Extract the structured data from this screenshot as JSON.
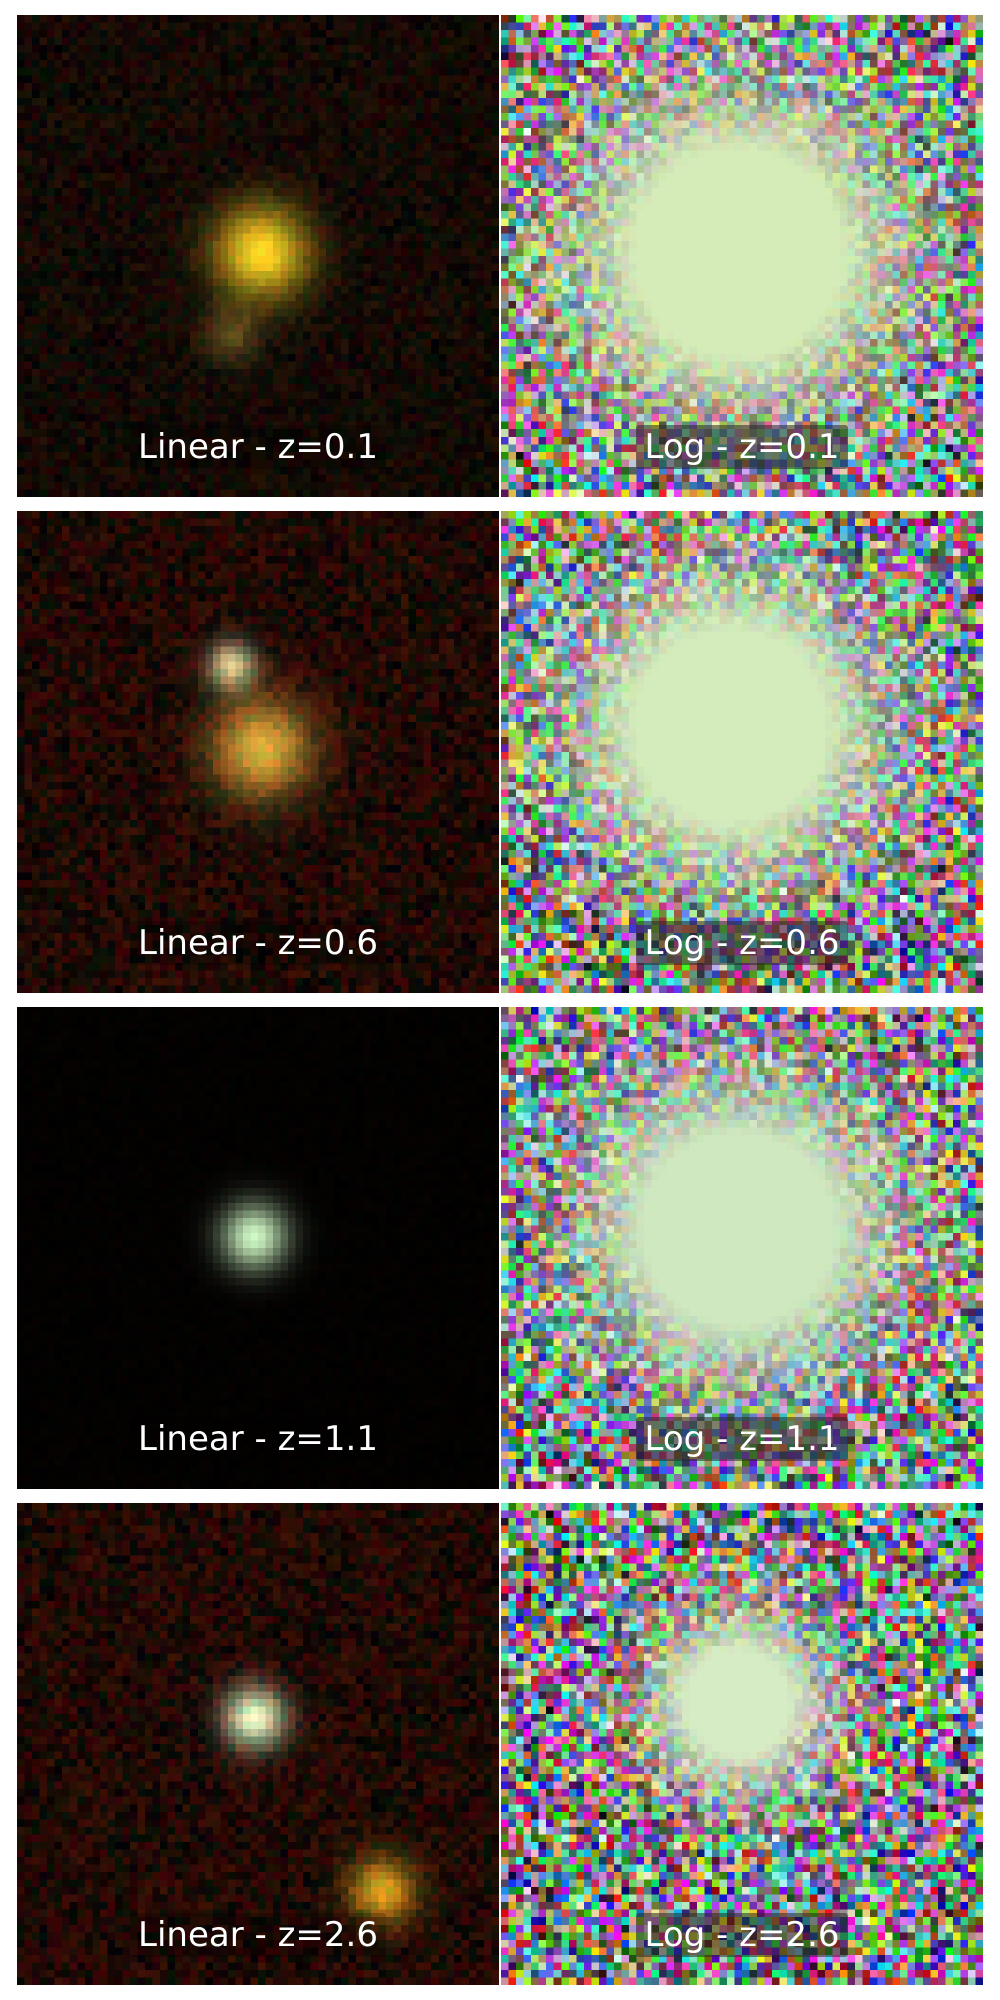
{
  "panels": [
    {
      "row": 0,
      "stretch": "linear",
      "label": "Linear - z=0.1",
      "sources": [
        {
          "kind": "galaxy",
          "color": "#f0d020"
        },
        {
          "kind": "faint",
          "color": "#c0b040"
        }
      ]
    },
    {
      "row": 0,
      "stretch": "log",
      "label": "Log - z=0.1",
      "sources": [
        {
          "kind": "halo",
          "color": "#d6ecb8"
        }
      ]
    },
    {
      "row": 1,
      "stretch": "linear",
      "label": "Linear - z=0.6",
      "sources": [
        {
          "kind": "galaxy",
          "color": "#e6c040"
        },
        {
          "kind": "compact",
          "color": "#d8f0b0"
        }
      ]
    },
    {
      "row": 1,
      "stretch": "log",
      "label": "Log - z=0.6",
      "sources": [
        {
          "kind": "halo",
          "color": "#d4ecbc"
        }
      ]
    },
    {
      "row": 2,
      "stretch": "linear",
      "label": "Linear - z=1.1",
      "sources": [
        {
          "kind": "point",
          "color": "#ccf6c4"
        }
      ]
    },
    {
      "row": 2,
      "stretch": "log",
      "label": "Log - z=1.1",
      "sources": [
        {
          "kind": "halo",
          "color": "#cfe8c0"
        }
      ]
    },
    {
      "row": 3,
      "stretch": "linear",
      "label": "Linear - z=2.6",
      "sources": [
        {
          "kind": "point",
          "color": "#ccf6c4"
        },
        {
          "kind": "galaxy",
          "color": "#f0c020"
        }
      ]
    },
    {
      "row": 3,
      "stretch": "log",
      "label": "Log - z=2.6",
      "sources": [
        {
          "kind": "halo",
          "color": "#d6ecc4"
        }
      ]
    }
  ]
}
